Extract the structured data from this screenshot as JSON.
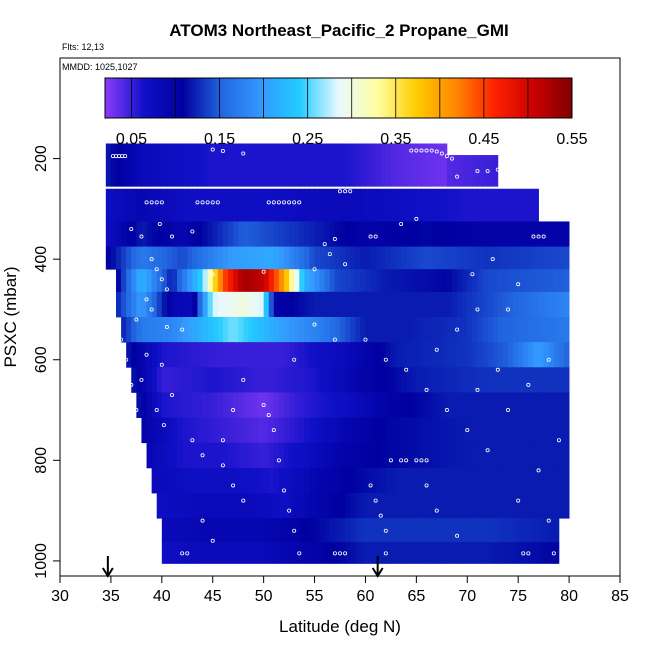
{
  "chart_data": {
    "type": "heatmap",
    "title": "ATOM3 Northeast_Pacific_2 Propane_GMI",
    "flights_text": "Flts: 12,13",
    "mmdd_text": "MMDD: 1025,1027",
    "xlabel": "Latitude (deg N)",
    "ylabel": "PSXC (mbar)",
    "xlim": [
      30,
      85
    ],
    "ylim": [
      1030,
      0
    ],
    "x_ticks": [
      "30",
      "35",
      "40",
      "45",
      "50",
      "55",
      "60",
      "65",
      "70",
      "75",
      "80",
      "85"
    ],
    "y_ticks": [
      "200",
      "400",
      "600",
      "800",
      "1000"
    ],
    "colorbar": {
      "range": [
        0.02,
        0.55
      ],
      "tick_labels": [
        "0.05",
        "0.15",
        "0.25",
        "0.35",
        "0.45",
        "0.55"
      ],
      "colors": [
        "#8b3dfa",
        "#1010c8",
        "#0000a0",
        "#2266e0",
        "#3399ff",
        "#22ccff",
        "#e8f8ff",
        "#ffffa0",
        "#ffcc00",
        "#ff8800",
        "#ff2200",
        "#cc0000",
        "#800000"
      ]
    },
    "rows": [
      {
        "p": 200,
        "lat": [
          34.5,
          68
        ],
        "profile": [
          [
            34.5,
            0.12
          ],
          [
            38,
            0.08
          ],
          [
            45,
            0.06
          ],
          [
            52,
            0.06
          ],
          [
            58,
            0.06
          ],
          [
            63,
            0.04
          ],
          [
            68,
            0.03
          ]
        ]
      },
      {
        "p": 220,
        "lat": [
          68,
          73
        ],
        "profile": [
          [
            68,
            0.04
          ],
          [
            73,
            0.05
          ]
        ]
      },
      {
        "p": 300,
        "lat": [
          34.5,
          77
        ],
        "profile": [
          [
            34.5,
            0.07
          ],
          [
            38,
            0.09
          ],
          [
            42,
            0.07
          ],
          [
            50,
            0.07
          ],
          [
            58,
            0.08
          ],
          [
            64,
            0.07
          ],
          [
            70,
            0.06
          ],
          [
            77,
            0.06
          ]
        ]
      },
      {
        "p": 350,
        "lat": [
          34.5,
          80
        ],
        "profile": [
          [
            34.5,
            0.07
          ],
          [
            38,
            0.12
          ],
          [
            42,
            0.09
          ],
          [
            48,
            0.15
          ],
          [
            53,
            0.13
          ],
          [
            60,
            0.1
          ],
          [
            66,
            0.11
          ],
          [
            72,
            0.1
          ],
          [
            80,
            0.1
          ]
        ]
      },
      {
        "p": 400,
        "lat": [
          34.5,
          80
        ],
        "profile": [
          [
            34.5,
            0.1
          ],
          [
            38,
            0.17
          ],
          [
            42,
            0.14
          ],
          [
            47,
            0.2
          ],
          [
            51,
            0.21
          ],
          [
            55,
            0.14
          ],
          [
            60,
            0.12
          ],
          [
            66,
            0.14
          ],
          [
            72,
            0.13
          ],
          [
            80,
            0.14
          ]
        ]
      },
      {
        "p": 440,
        "lat": [
          35.5,
          80
        ],
        "profile": [
          [
            35.5,
            0.1
          ],
          [
            38,
            0.22
          ],
          [
            41,
            0.12
          ],
          [
            44,
            0.25
          ],
          [
            46,
            0.44
          ],
          [
            48,
            0.53
          ],
          [
            50,
            0.51
          ],
          [
            52,
            0.4
          ],
          [
            54,
            0.22
          ],
          [
            57,
            0.14
          ],
          [
            62,
            0.12
          ],
          [
            68,
            0.11
          ],
          [
            72,
            0.14
          ],
          [
            80,
            0.15
          ]
        ]
      },
      {
        "p": 490,
        "lat": [
          35.5,
          80
        ],
        "profile": [
          [
            35.5,
            0.12
          ],
          [
            38,
            0.2
          ],
          [
            41,
            0.09
          ],
          [
            43,
            0.08
          ],
          [
            45,
            0.28
          ],
          [
            48,
            0.3
          ],
          [
            50,
            0.28
          ],
          [
            51,
            0.1
          ],
          [
            55,
            0.12
          ],
          [
            60,
            0.12
          ],
          [
            68,
            0.12
          ],
          [
            72,
            0.14
          ],
          [
            80,
            0.18
          ]
        ]
      },
      {
        "p": 540,
        "lat": [
          36,
          80
        ],
        "profile": [
          [
            36,
            0.12
          ],
          [
            38,
            0.17
          ],
          [
            41,
            0.18
          ],
          [
            44,
            0.22
          ],
          [
            47,
            0.26
          ],
          [
            52,
            0.2
          ],
          [
            56,
            0.17
          ],
          [
            60,
            0.12
          ],
          [
            64,
            0.12
          ],
          [
            70,
            0.13
          ],
          [
            73,
            0.15
          ],
          [
            80,
            0.17
          ]
        ]
      },
      {
        "p": 590,
        "lat": [
          36.5,
          80
        ],
        "profile": [
          [
            36.5,
            0.12
          ],
          [
            40,
            0.06
          ],
          [
            46,
            0.05
          ],
          [
            52,
            0.05
          ],
          [
            58,
            0.08
          ],
          [
            63,
            0.12
          ],
          [
            70,
            0.13
          ],
          [
            74,
            0.15
          ],
          [
            77,
            0.2
          ],
          [
            80,
            0.15
          ]
        ]
      },
      {
        "p": 640,
        "lat": [
          37,
          80
        ],
        "profile": [
          [
            37,
            0.12
          ],
          [
            40,
            0.05
          ],
          [
            45,
            0.06
          ],
          [
            50,
            0.05
          ],
          [
            55,
            0.06
          ],
          [
            60,
            0.1
          ],
          [
            65,
            0.12
          ],
          [
            72,
            0.13
          ],
          [
            80,
            0.13
          ]
        ]
      },
      {
        "p": 690,
        "lat": [
          37.5,
          80
        ],
        "profile": [
          [
            37.5,
            0.12
          ],
          [
            40,
            0.06
          ],
          [
            45,
            0.05
          ],
          [
            50,
            0.03
          ],
          [
            53,
            0.05
          ],
          [
            58,
            0.07
          ],
          [
            62,
            0.1
          ],
          [
            68,
            0.12
          ],
          [
            80,
            0.12
          ]
        ]
      },
      {
        "p": 740,
        "lat": [
          38,
          80
        ],
        "profile": [
          [
            38,
            0.1
          ],
          [
            42,
            0.06
          ],
          [
            46,
            0.05
          ],
          [
            50,
            0.04
          ],
          [
            54,
            0.06
          ],
          [
            58,
            0.09
          ],
          [
            62,
            0.11
          ],
          [
            70,
            0.12
          ],
          [
            80,
            0.12
          ]
        ]
      },
      {
        "p": 790,
        "lat": [
          38.5,
          80
        ],
        "profile": [
          [
            38.5,
            0.09
          ],
          [
            42,
            0.06
          ],
          [
            46,
            0.06
          ],
          [
            50,
            0.05
          ],
          [
            54,
            0.07
          ],
          [
            58,
            0.1
          ],
          [
            62,
            0.11
          ],
          [
            70,
            0.12
          ],
          [
            80,
            0.12
          ]
        ]
      },
      {
        "p": 840,
        "lat": [
          39,
          80
        ],
        "profile": [
          [
            39,
            0.08
          ],
          [
            43,
            0.07
          ],
          [
            47,
            0.07
          ],
          [
            51,
            0.06
          ],
          [
            55,
            0.09
          ],
          [
            59,
            0.11
          ],
          [
            63,
            0.12
          ],
          [
            70,
            0.12
          ],
          [
            80,
            0.12
          ]
        ]
      },
      {
        "p": 890,
        "lat": [
          39.5,
          80
        ],
        "profile": [
          [
            39.5,
            0.07
          ],
          [
            44,
            0.08
          ],
          [
            48,
            0.08
          ],
          [
            52,
            0.07
          ],
          [
            56,
            0.1
          ],
          [
            60,
            0.12
          ],
          [
            65,
            0.12
          ],
          [
            72,
            0.12
          ],
          [
            80,
            0.12
          ]
        ]
      },
      {
        "p": 940,
        "lat": [
          40,
          79
        ],
        "profile": [
          [
            40,
            0.08
          ],
          [
            45,
            0.09
          ],
          [
            50,
            0.09
          ],
          [
            55,
            0.11
          ],
          [
            60,
            0.13
          ],
          [
            65,
            0.13
          ],
          [
            72,
            0.13
          ],
          [
            79,
            0.12
          ]
        ]
      },
      {
        "p": 985,
        "lat": [
          40,
          79
        ],
        "profile": [
          [
            40,
            0.07
          ],
          [
            45,
            0.08
          ],
          [
            50,
            0.08
          ],
          [
            55,
            0.1
          ],
          [
            60,
            0.12
          ],
          [
            65,
            0.12
          ],
          [
            72,
            0.12
          ],
          [
            79,
            0.11
          ]
        ]
      }
    ],
    "sample_points": [
      [
        35.2,
        195
      ],
      [
        35.5,
        195
      ],
      [
        35.8,
        195
      ],
      [
        36.1,
        195
      ],
      [
        36.4,
        195
      ],
      [
        64.5,
        184
      ],
      [
        65,
        184
      ],
      [
        65.5,
        184
      ],
      [
        66,
        184
      ],
      [
        66.5,
        184
      ],
      [
        67,
        186
      ],
      [
        67.5,
        190
      ],
      [
        68,
        195
      ],
      [
        68.5,
        200
      ],
      [
        45,
        182
      ],
      [
        46,
        185
      ],
      [
        48,
        190
      ],
      [
        43.5,
        287
      ],
      [
        44,
        287
      ],
      [
        44.5,
        287
      ],
      [
        45,
        287
      ],
      [
        45.5,
        287
      ],
      [
        50.5,
        287
      ],
      [
        51,
        287
      ],
      [
        51.5,
        287
      ],
      [
        52,
        287
      ],
      [
        52.5,
        287
      ],
      [
        53,
        287
      ],
      [
        53.5,
        287
      ],
      [
        38.5,
        287
      ],
      [
        39,
        287
      ],
      [
        39.5,
        287
      ],
      [
        40,
        287
      ],
      [
        57.5,
        265
      ],
      [
        58,
        265
      ],
      [
        58.5,
        265
      ],
      [
        60.5,
        355
      ],
      [
        61,
        355
      ],
      [
        63.5,
        330
      ],
      [
        65,
        320
      ],
      [
        76.5,
        355
      ],
      [
        77,
        355
      ],
      [
        77.5,
        355
      ],
      [
        71,
        225
      ],
      [
        72,
        225
      ],
      [
        73,
        222
      ],
      [
        73.5,
        230
      ],
      [
        69,
        236
      ],
      [
        37,
        340
      ],
      [
        38,
        355
      ],
      [
        39.8,
        330
      ],
      [
        41,
        355
      ],
      [
        43,
        345
      ],
      [
        39,
        400
      ],
      [
        39.5,
        420
      ],
      [
        40,
        440
      ],
      [
        40.5,
        460
      ],
      [
        38.5,
        480
      ],
      [
        39,
        500
      ],
      [
        37.5,
        520
      ],
      [
        40.5,
        535
      ],
      [
        42,
        540
      ],
      [
        38.5,
        590
      ],
      [
        40,
        610
      ],
      [
        38,
        640
      ],
      [
        41,
        670
      ],
      [
        39.5,
        700
      ],
      [
        40.2,
        730
      ],
      [
        43,
        760
      ],
      [
        44,
        790
      ],
      [
        45,
        430
      ],
      [
        50,
        425
      ],
      [
        55,
        420
      ],
      [
        58,
        410
      ],
      [
        56,
        370
      ],
      [
        56.5,
        390
      ],
      [
        57,
        360
      ],
      [
        60,
        560
      ],
      [
        62,
        600
      ],
      [
        64,
        620
      ],
      [
        66,
        660
      ],
      [
        68,
        700
      ],
      [
        70,
        740
      ],
      [
        72,
        780
      ],
      [
        62.5,
        800
      ],
      [
        63.5,
        800
      ],
      [
        64,
        800
      ],
      [
        65,
        800
      ],
      [
        65.5,
        800
      ],
      [
        66,
        800
      ],
      [
        50,
        690
      ],
      [
        50.5,
        710
      ],
      [
        51,
        740
      ],
      [
        51.5,
        800
      ],
      [
        52,
        860
      ],
      [
        52.5,
        900
      ],
      [
        53,
        940
      ],
      [
        53.5,
        985
      ],
      [
        46,
        810
      ],
      [
        47,
        850
      ],
      [
        48,
        880
      ],
      [
        44,
        920
      ],
      [
        45,
        960
      ],
      [
        42,
        985
      ],
      [
        42.5,
        985
      ],
      [
        57,
        985
      ],
      [
        57.5,
        985
      ],
      [
        58,
        985
      ],
      [
        62,
        985
      ],
      [
        75.5,
        985
      ],
      [
        76,
        985
      ],
      [
        78.5,
        985
      ],
      [
        75,
        450
      ],
      [
        74,
        500
      ],
      [
        78,
        600
      ],
      [
        76,
        650
      ],
      [
        74,
        700
      ],
      [
        79,
        760
      ],
      [
        77,
        820
      ],
      [
        75,
        880
      ],
      [
        78,
        920
      ],
      [
        35,
        480
      ],
      [
        35.5,
        540
      ],
      [
        36,
        560
      ],
      [
        36.5,
        600
      ],
      [
        37,
        650
      ],
      [
        37.5,
        700
      ],
      [
        60.5,
        850
      ],
      [
        61,
        880
      ],
      [
        61.5,
        910
      ],
      [
        62,
        940
      ],
      [
        66,
        850
      ],
      [
        67,
        900
      ],
      [
        69,
        950
      ],
      [
        55,
        530
      ],
      [
        57,
        560
      ],
      [
        53,
        600
      ],
      [
        48,
        640
      ],
      [
        47,
        700
      ],
      [
        46,
        760
      ],
      [
        72.5,
        400
      ],
      [
        70.5,
        430
      ],
      [
        71,
        500
      ],
      [
        69,
        540
      ],
      [
        67,
        580
      ],
      [
        73,
        620
      ],
      [
        71,
        660
      ]
    ],
    "arrows_lat": [
      34.7,
      61.2
    ]
  }
}
